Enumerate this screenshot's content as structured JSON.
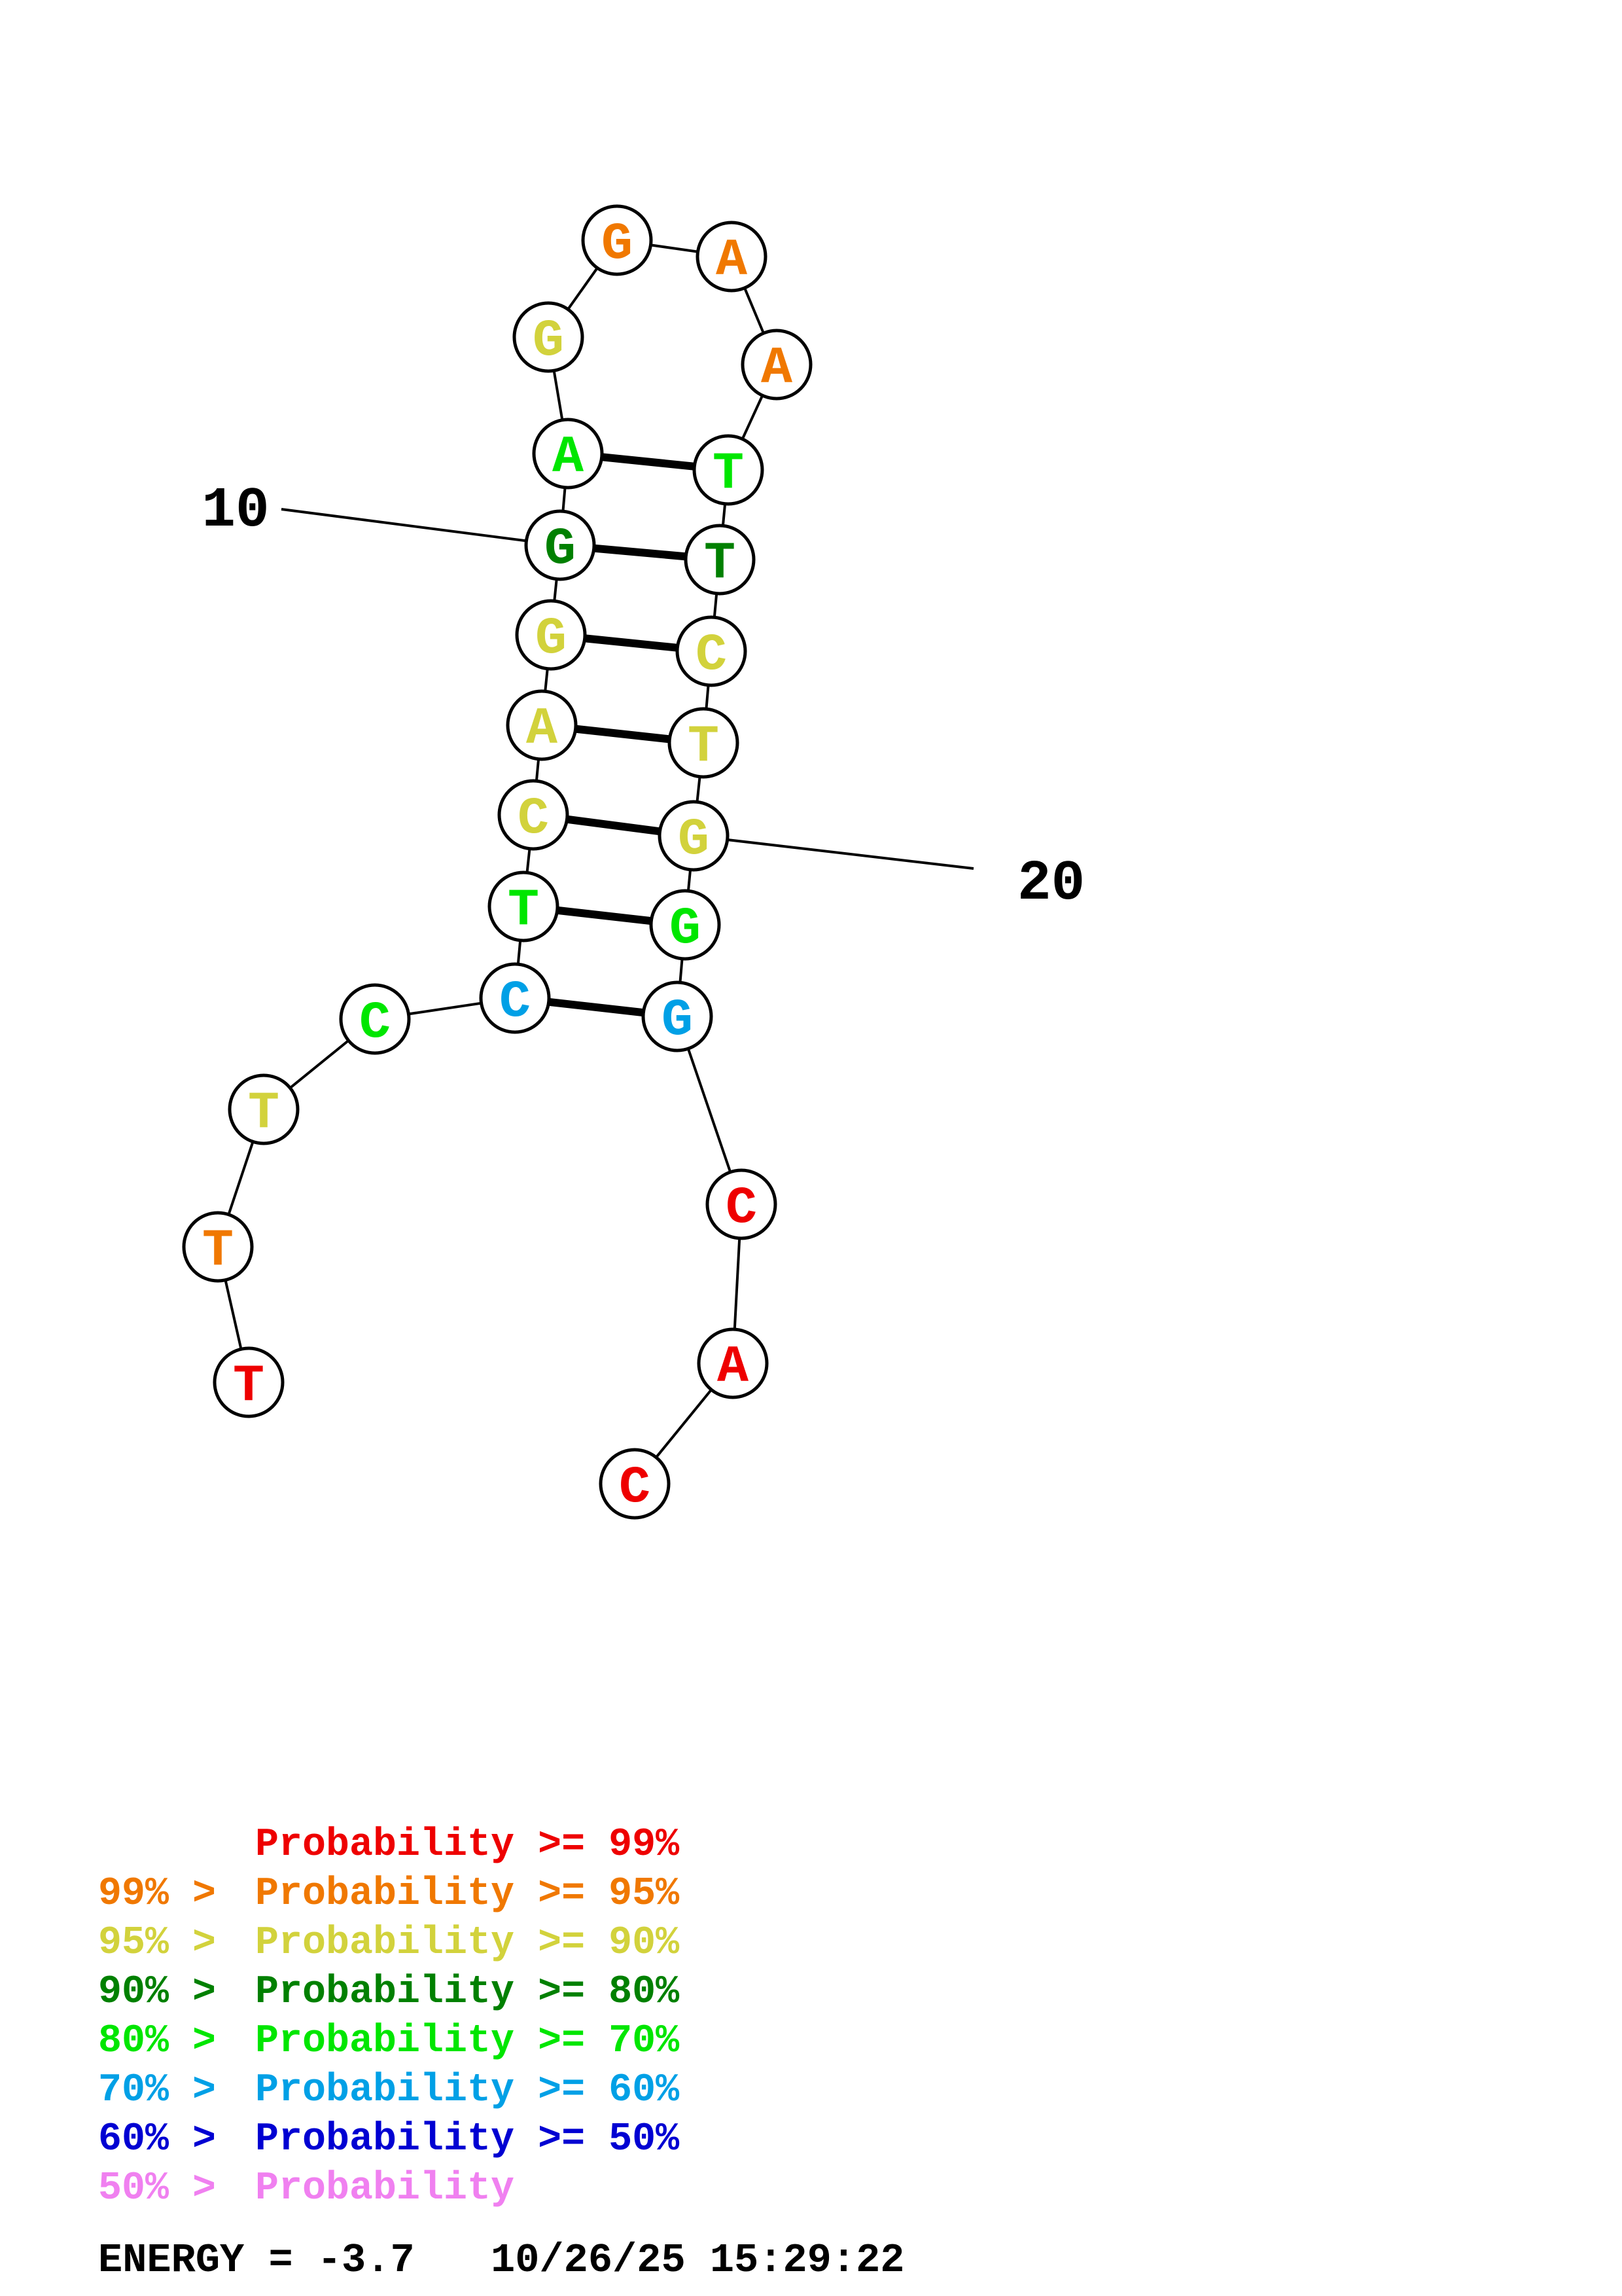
{
  "colors": {
    "p99": "#ee0000",
    "p95": "#f07800",
    "p90": "#d2d23c",
    "p80": "#008000",
    "p70": "#00e600",
    "p60": "#00a0e6",
    "p50": "#0000d2",
    "p0": "#f080f0"
  },
  "structure": {
    "nucleotides": [
      {
        "n": 1,
        "base": "T",
        "prob": "p99"
      },
      {
        "n": 2,
        "base": "T",
        "prob": "p95"
      },
      {
        "n": 3,
        "base": "T",
        "prob": "p90"
      },
      {
        "n": 4,
        "base": "C",
        "prob": "p70"
      },
      {
        "n": 5,
        "base": "C",
        "prob": "p60"
      },
      {
        "n": 6,
        "base": "T",
        "prob": "p70"
      },
      {
        "n": 7,
        "base": "C",
        "prob": "p90"
      },
      {
        "n": 8,
        "base": "A",
        "prob": "p90"
      },
      {
        "n": 9,
        "base": "G",
        "prob": "p90"
      },
      {
        "n": 10,
        "base": "G",
        "prob": "p80"
      },
      {
        "n": 11,
        "base": "A",
        "prob": "p70"
      },
      {
        "n": 12,
        "base": "G",
        "prob": "p90"
      },
      {
        "n": 13,
        "base": "G",
        "prob": "p95"
      },
      {
        "n": 14,
        "base": "A",
        "prob": "p95"
      },
      {
        "n": 15,
        "base": "A",
        "prob": "p95"
      },
      {
        "n": 16,
        "base": "T",
        "prob": "p70"
      },
      {
        "n": 17,
        "base": "T",
        "prob": "p80"
      },
      {
        "n": 18,
        "base": "C",
        "prob": "p90"
      },
      {
        "n": 19,
        "base": "T",
        "prob": "p90"
      },
      {
        "n": 20,
        "base": "G",
        "prob": "p90"
      },
      {
        "n": 21,
        "base": "G",
        "prob": "p70"
      },
      {
        "n": 22,
        "base": "G",
        "prob": "p60"
      },
      {
        "n": 23,
        "base": "C",
        "prob": "p99"
      },
      {
        "n": 24,
        "base": "A",
        "prob": "p99"
      },
      {
        "n": 25,
        "base": "C",
        "prob": "p99"
      }
    ],
    "pairs": [
      [
        5,
        22
      ],
      [
        6,
        21
      ],
      [
        7,
        20
      ],
      [
        8,
        19
      ],
      [
        9,
        18
      ],
      [
        10,
        17
      ],
      [
        11,
        16
      ]
    ],
    "position_labels": [
      {
        "n": 10,
        "text": "10"
      },
      {
        "n": 20,
        "text": "20"
      }
    ]
  },
  "legend": [
    {
      "prefix": "",
      "text": "Probability >= 99%",
      "color_key": "p99"
    },
    {
      "prefix": "99% > ",
      "text": "Probability >= 95%",
      "color_key": "p95"
    },
    {
      "prefix": "95% > ",
      "text": "Probability >= 90%",
      "color_key": "p90"
    },
    {
      "prefix": "90% > ",
      "text": "Probability >= 80%",
      "color_key": "p80"
    },
    {
      "prefix": "80% > ",
      "text": "Probability >= 70%",
      "color_key": "p70"
    },
    {
      "prefix": "70% > ",
      "text": "Probability >= 60%",
      "color_key": "p60"
    },
    {
      "prefix": "60% > ",
      "text": "Probability >= 50%",
      "color_key": "p50"
    },
    {
      "prefix": "50% > ",
      "text": "Probability",
      "color_key": "p0"
    }
  ],
  "footer": {
    "energy": "ENERGY = -3.7",
    "timestamp": "10/26/25 15:29:22"
  }
}
